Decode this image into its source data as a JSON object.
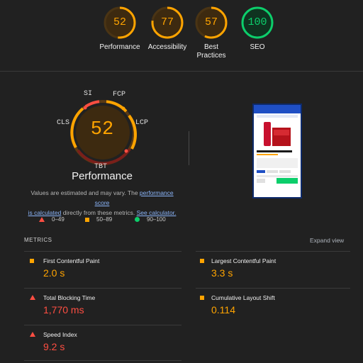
{
  "scores": [
    {
      "label": "Performance",
      "value": "52",
      "color": "#ffa400"
    },
    {
      "label": "Accessibility",
      "value": "77",
      "color": "#ffa400"
    },
    {
      "label": "Best\nPractices",
      "value": "57",
      "color": "#ffa400"
    },
    {
      "label": "SEO",
      "value": "100",
      "color": "#0cce6b"
    }
  ],
  "gauge_fill": {
    "performance": 0.52,
    "accessibility": 0.77,
    "best_practices": 0.57,
    "seo": 1.0
  },
  "main": {
    "score": "52",
    "title": "Performance",
    "tags": {
      "si": "SI",
      "fcp": "FCP",
      "cls": "CLS",
      "lcp": "LCP",
      "tbt": "TBT"
    },
    "note_prefix": "Values are estimated and may vary. The ",
    "note_link1": "performance score",
    "note_link1b": "is calculated",
    "note_mid": " directly from these metrics. ",
    "note_link2": "See calculator."
  },
  "legend": [
    {
      "range": "0–49",
      "color": "#ff4e42",
      "shape": "triangle"
    },
    {
      "range": "50–89",
      "color": "#ffa400",
      "shape": "square"
    },
    {
      "range": "90–100",
      "color": "#0cce6b",
      "shape": "circle"
    }
  ],
  "metrics_header": {
    "title": "METRICS",
    "expand": "Expand view"
  },
  "metrics": [
    {
      "name": "First Contentful Paint",
      "value": "2.0 s",
      "status": "average"
    },
    {
      "name": "Largest Contentful Paint",
      "value": "3.3 s",
      "status": "average"
    },
    {
      "name": "Total Blocking Time",
      "value": "1,770 ms",
      "status": "fail"
    },
    {
      "name": "Cumulative Layout Shift",
      "value": "0.114",
      "status": "average"
    },
    {
      "name": "Speed Index",
      "value": "9.2 s",
      "status": "fail"
    }
  ],
  "colors": {
    "pass": "#0cce6b",
    "average": "#ffa400",
    "fail": "#ff4e42",
    "background": "#212121"
  }
}
